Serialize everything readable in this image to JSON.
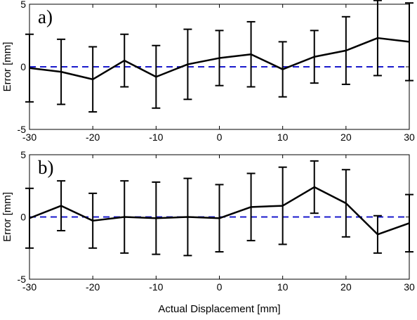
{
  "chart_data": [
    {
      "type": "line",
      "panel_label": "a)",
      "xlabel": "",
      "ylabel": "Error [mm]",
      "xlim": [
        -30,
        30
      ],
      "ylim": [
        -5,
        5
      ],
      "xticks": [
        -30,
        -20,
        -10,
        0,
        10,
        20,
        30
      ],
      "yticks": [
        -5,
        0,
        5
      ],
      "grid": false,
      "reference_line": {
        "y": 0,
        "style": "dashed",
        "color": "#1a1acc"
      },
      "series": [
        {
          "color": "#000000",
          "x": [
            -30,
            -25,
            -20,
            -15,
            -10,
            -5,
            0,
            5,
            10,
            15,
            20,
            25,
            30
          ],
          "values": [
            -0.1,
            -0.4,
            -1.0,
            0.5,
            -0.8,
            0.2,
            0.7,
            1.0,
            -0.2,
            0.8,
            1.3,
            2.3,
            2.0
          ],
          "error": [
            2.7,
            2.6,
            2.6,
            2.1,
            2.5,
            2.8,
            2.2,
            2.6,
            2.2,
            2.1,
            2.7,
            3.0,
            3.1
          ]
        }
      ]
    },
    {
      "type": "line",
      "panel_label": "b)",
      "xlabel": "Actual Displacement [mm]",
      "ylabel": "Error [mm]",
      "xlim": [
        -30,
        30
      ],
      "ylim": [
        -5,
        5
      ],
      "xticks": [
        -30,
        -20,
        -10,
        0,
        10,
        20,
        30
      ],
      "yticks": [
        -5,
        0,
        5
      ],
      "grid": false,
      "reference_line": {
        "y": 0,
        "style": "dashed",
        "color": "#1a1acc"
      },
      "series": [
        {
          "color": "#000000",
          "x": [
            -30,
            -25,
            -20,
            -15,
            -10,
            -5,
            0,
            5,
            10,
            15,
            20,
            25,
            30
          ],
          "values": [
            -0.1,
            0.9,
            -0.3,
            0.0,
            -0.1,
            0.0,
            -0.1,
            0.8,
            0.9,
            2.4,
            1.1,
            -1.4,
            -0.5
          ],
          "error": [
            2.4,
            2.0,
            2.2,
            2.9,
            2.9,
            3.1,
            2.7,
            2.7,
            3.1,
            2.1,
            2.7,
            1.5,
            2.3
          ]
        }
      ]
    }
  ]
}
